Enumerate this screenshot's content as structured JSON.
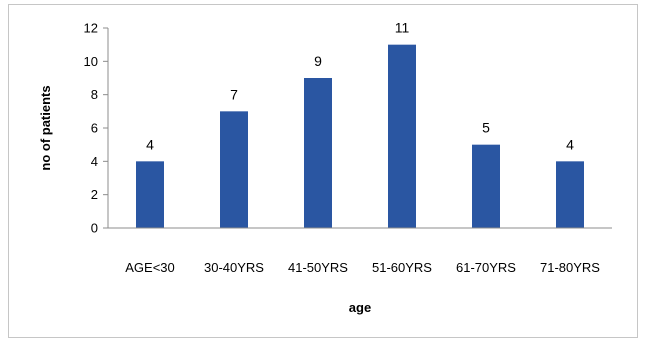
{
  "chart_data": {
    "type": "bar",
    "categories": [
      "AGE<30",
      "30-40YRS",
      "41-50YRS",
      "51-60YRS",
      "61-70YRS",
      "71-80YRS"
    ],
    "values": [
      4,
      7,
      9,
      11,
      5,
      4
    ],
    "data_labels": [
      "4",
      "7",
      "9",
      "11",
      "5",
      "4"
    ],
    "title": "",
    "xlabel": "age",
    "ylabel": "no of patients",
    "ylim": [
      0,
      12
    ],
    "yticks": [
      0,
      2,
      4,
      6,
      8,
      10,
      12
    ],
    "ytick_labels": [
      "0",
      "2",
      "4",
      "6",
      "8",
      "10",
      "12"
    ],
    "grid": false,
    "legend": "none",
    "bar_color": "#2a56a2"
  }
}
